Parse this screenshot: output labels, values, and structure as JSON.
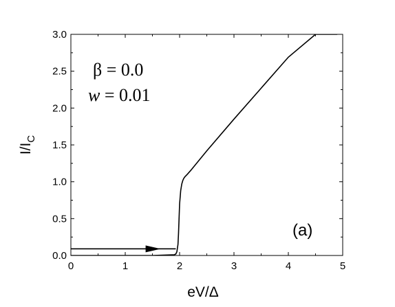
{
  "chart_data": {
    "type": "line",
    "title": "",
    "xlabel": "eV/Δ",
    "ylabel": "I/I",
    "ylabel_subscript": "C",
    "xlim": [
      0,
      5
    ],
    "ylim": [
      0,
      3
    ],
    "x_ticks": [
      "0",
      "1",
      "2",
      "3",
      "4",
      "5"
    ],
    "y_ticks": [
      "0.0",
      "0.5",
      "1.0",
      "1.5",
      "2.0",
      "2.5",
      "3.0"
    ],
    "grid": false,
    "legend": "none",
    "annotations": {
      "beta_line": "β = 0.0",
      "w_symbol": "w",
      "w_value": " = 0.01",
      "panel_label": "(a)"
    },
    "series": [
      {
        "values_x": [
          0.0,
          1.5,
          1.9,
          1.93,
          1.95,
          1.97,
          1.98,
          1.99,
          2.0,
          2.02,
          2.04,
          2.06,
          2.08,
          2.1,
          2.14,
          2.2,
          2.5,
          3.0,
          3.5,
          4.0,
          4.5,
          4.9
        ],
        "values_y": [
          0.0,
          0.0,
          0.01,
          0.02,
          0.05,
          0.15,
          0.3,
          0.5,
          0.7,
          0.88,
          0.97,
          1.02,
          1.05,
          1.07,
          1.1,
          1.15,
          1.42,
          1.85,
          2.27,
          2.69,
          3.0,
          3.0
        ]
      },
      {
        "values_x": [
          0.0,
          1.93
        ],
        "values_y": [
          0.09,
          0.09
        ]
      }
    ],
    "arrow": {
      "x": 1.4,
      "y": 0.09,
      "direction": "right"
    },
    "color": "#000000"
  }
}
